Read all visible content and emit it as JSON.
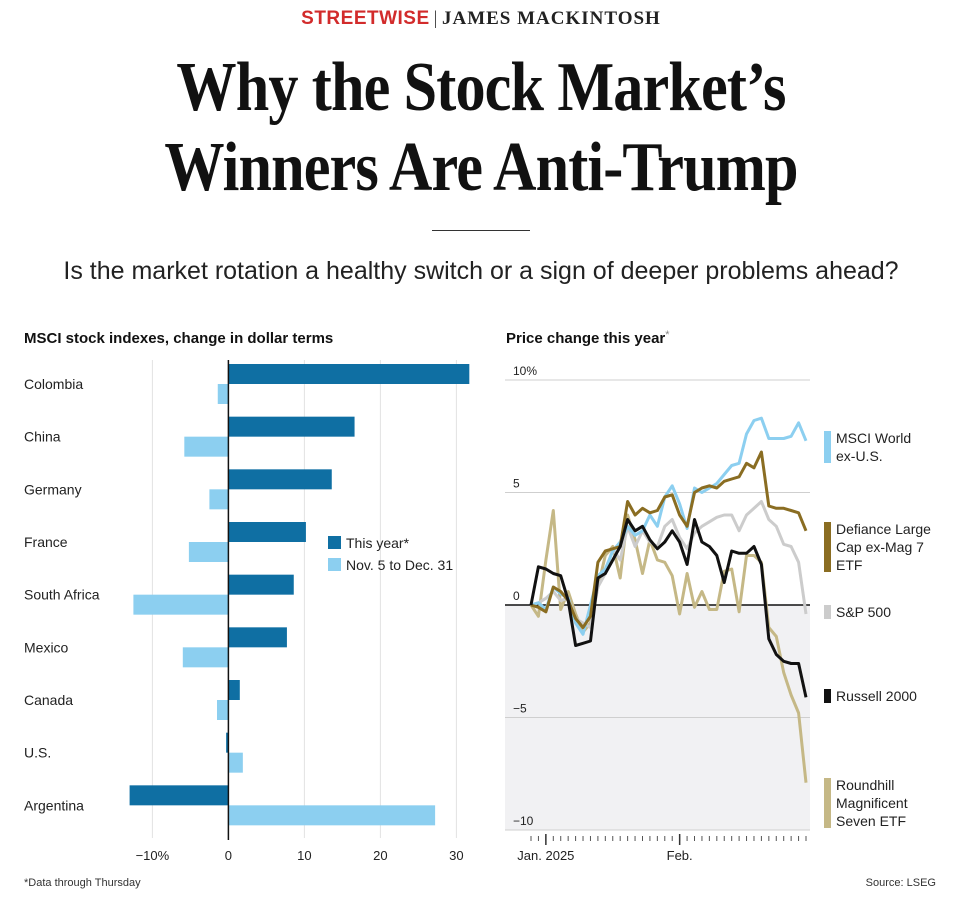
{
  "header": {
    "brand": "STREETWISE",
    "separator": "|",
    "author": "JAMES MACKINTOSH",
    "headline_line1": "Why the Stock Market’s",
    "headline_line2": "Winners Are Anti-Trump",
    "dek": "Is the market rotation a healthy switch or a sign of deeper problems ahead?"
  },
  "footer": {
    "note": "*Data through Thursday",
    "source": "Source: LSEG"
  },
  "colors": {
    "this_year": "#0f6fa3",
    "nov_dec": "#8ccff0",
    "msci_world": "#8ccff0",
    "defiance": "#8a6d22",
    "sp500": "#cccccc",
    "russell": "#111111",
    "roundhill": "#c5b886",
    "negative_shade": "#f1f1f3"
  },
  "chart_data": [
    {
      "type": "bar",
      "orientation": "horizontal",
      "title": "MSCI stock indexes, change in dollar terms",
      "categories": [
        "Colombia",
        "China",
        "Germany",
        "France",
        "South Africa",
        "Mexico",
        "Canada",
        "U.S.",
        "Argentina"
      ],
      "series": [
        {
          "name": "This year*",
          "values": [
            31.7,
            16.6,
            13.6,
            10.2,
            8.6,
            7.7,
            1.5,
            -0.3,
            -13.0
          ]
        },
        {
          "name": "Nov. 5 to Dec. 31",
          "values": [
            -1.4,
            -5.8,
            -2.5,
            -5.2,
            -12.5,
            -6.0,
            -1.5,
            1.9,
            27.2
          ]
        }
      ],
      "xlim": [
        -14,
        31
      ],
      "xticks": [
        -10,
        0,
        10,
        20,
        30
      ],
      "xtick_labels": [
        "−10%",
        "0",
        "10",
        "20",
        "30"
      ],
      "legend": "center-right"
    },
    {
      "type": "line",
      "title": "Price change this year",
      "title_suffix": "*",
      "ylim": [
        -10,
        10
      ],
      "yticks": [
        10,
        5,
        0,
        -5,
        -10
      ],
      "ytick_labels": [
        "10%",
        "5",
        "0",
        "−5",
        "−10"
      ],
      "xtick_labels": [
        "Jan. 2025",
        "Feb."
      ],
      "x_day_count": 38,
      "x_label_days": [
        2,
        20
      ],
      "series": [
        {
          "name": "MSCI World ex-U.S.",
          "label_lines": [
            "MSCI World",
            "ex-U.S."
          ],
          "color_key": "msci_world",
          "values": [
            0,
            0.1,
            -0.2,
            0.8,
            0.5,
            0.3,
            -0.8,
            -1.3,
            0,
            1.3,
            1.6,
            2.4,
            2.8,
            3.5,
            3.1,
            3.3,
            4.0,
            3.5,
            4.8,
            5.3,
            4.5,
            3.4,
            5.2,
            5.0,
            5.2,
            5.4,
            5.8,
            6.2,
            6.3,
            7.6,
            8.2,
            8.3,
            7.4,
            7.4,
            7.4,
            7.5,
            8.1,
            7.3
          ]
        },
        {
          "name": "Defiance Large Cap ex-Mag 7 ETF",
          "label_lines": [
            "Defiance Large",
            "Cap ex-Mag 7",
            "ETF"
          ],
          "color_key": "defiance",
          "values": [
            0,
            -0.1,
            -0.3,
            0.8,
            0.6,
            0.2,
            -0.6,
            -1.0,
            -0.5,
            1.9,
            2.4,
            2.5,
            2.6,
            4.6,
            4.0,
            4.3,
            4.1,
            4.2,
            4.8,
            4.9,
            4.0,
            3.5,
            5.0,
            5.2,
            5.3,
            5.2,
            5.5,
            5.6,
            5.7,
            6.3,
            6.1,
            6.8,
            4.4,
            4.3,
            4.3,
            4.2,
            4.1,
            3.3
          ]
        },
        {
          "name": "S&P 500",
          "label_lines": [
            "S&P 500"
          ],
          "color_key": "sp500",
          "values": [
            0,
            0.1,
            0.3,
            0.6,
            0.2,
            0.3,
            -0.6,
            -0.8,
            -1.0,
            0.8,
            1.4,
            2.5,
            2.0,
            3.5,
            2.6,
            3.3,
            2.8,
            2.6,
            3.5,
            3.8,
            3.0,
            2.5,
            3.2,
            3.5,
            3.7,
            3.9,
            4.0,
            4.0,
            3.3,
            4.0,
            4.3,
            4.6,
            3.8,
            3.5,
            2.7,
            2.6,
            1.9,
            -0.4
          ]
        },
        {
          "name": "Russell 2000",
          "label_lines": [
            "Russell 2000"
          ],
          "color_key": "russell",
          "values": [
            0,
            1.7,
            1.6,
            1.4,
            1.3,
            0.2,
            -1.8,
            -1.7,
            -1.6,
            1.2,
            1.4,
            2.0,
            2.6,
            3.8,
            3.3,
            3.5,
            2.9,
            2.5,
            2.8,
            3.3,
            2.8,
            1.8,
            3.8,
            2.8,
            2.6,
            2.2,
            1.0,
            2.4,
            2.3,
            2.3,
            2.6,
            1.8,
            -1.5,
            -2.2,
            -2.5,
            -2.6,
            -2.6,
            -4.1
          ]
        },
        {
          "name": "Roundhill Magnificent Seven ETF",
          "label_lines": [
            "Roundhill",
            "Magnificent",
            "Seven ETF"
          ],
          "color_key": "roundhill",
          "values": [
            0,
            -0.5,
            2.0,
            4.2,
            -0.2,
            0.6,
            -0.4,
            -1.2,
            -0.8,
            0.8,
            2.2,
            2.6,
            1.2,
            4.0,
            2.9,
            1.4,
            2.9,
            2.0,
            1.9,
            1.3,
            -0.4,
            1.4,
            -0.1,
            0.6,
            -0.2,
            -0.2,
            1.5,
            1.6,
            -0.3,
            2.2,
            2.2,
            1.9,
            -1.0,
            -1.4,
            -3.0,
            -4.0,
            -4.8,
            -7.9
          ]
        }
      ]
    }
  ]
}
